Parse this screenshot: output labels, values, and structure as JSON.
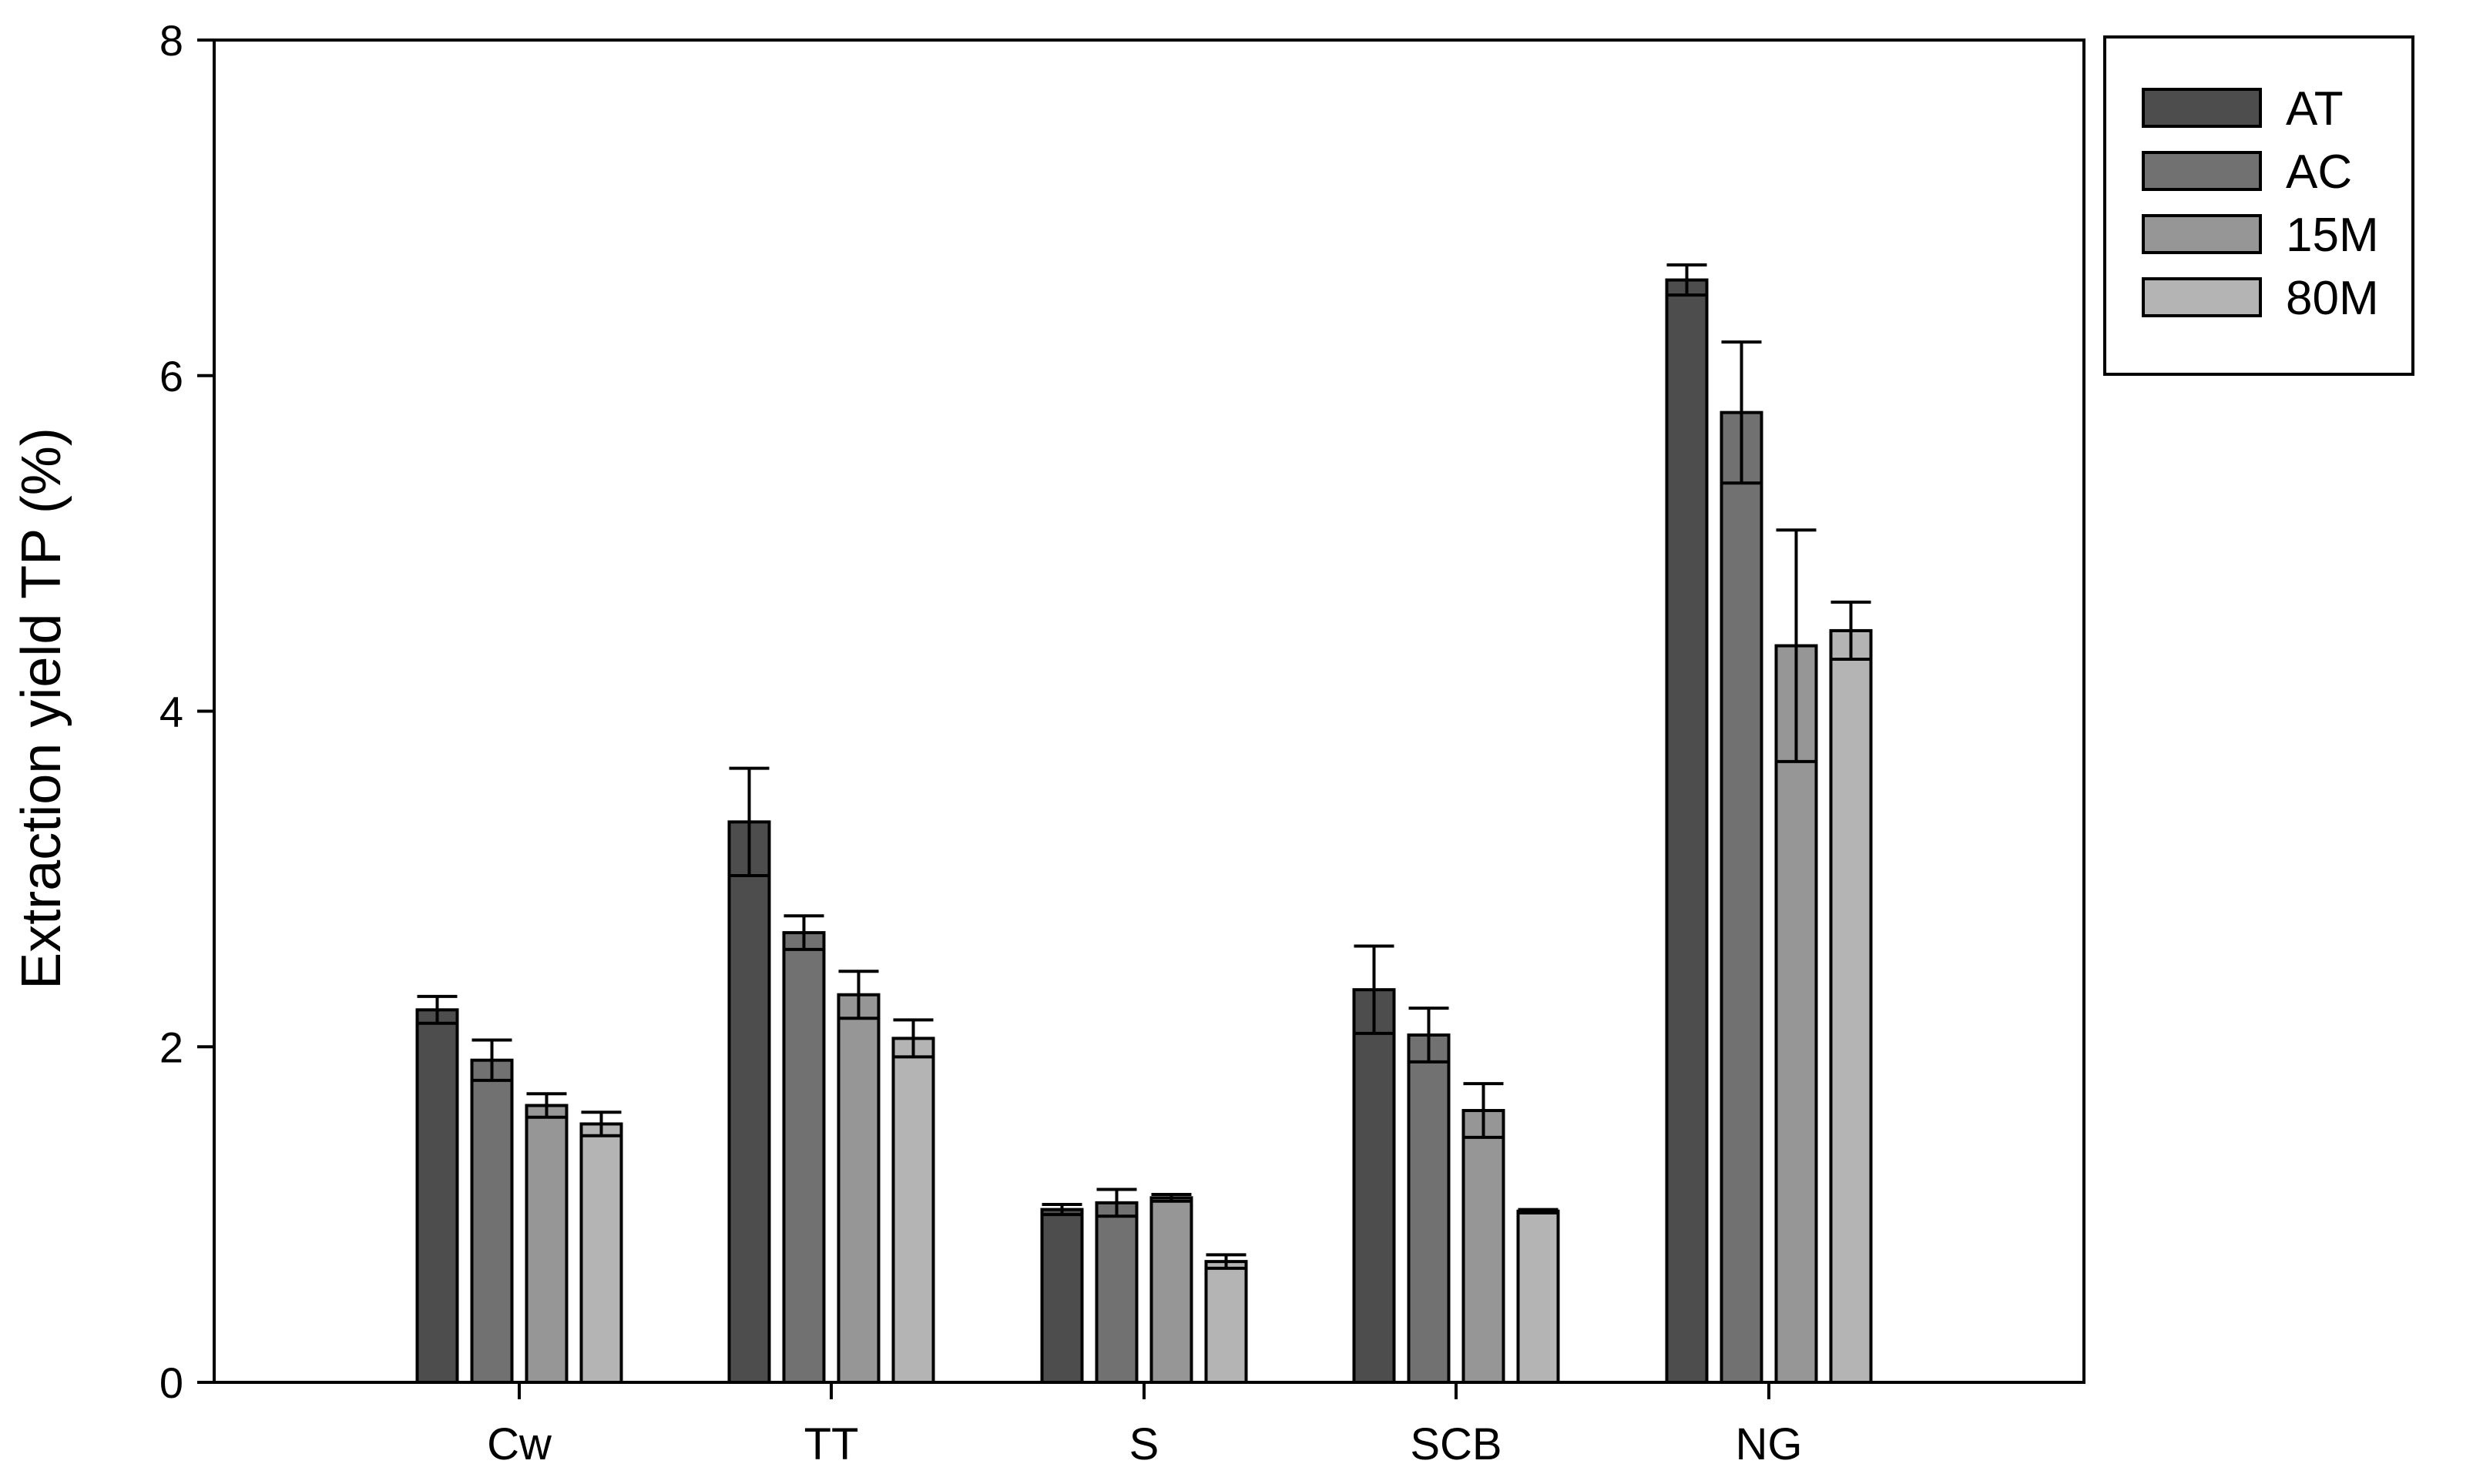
{
  "chart_data": {
    "type": "bar",
    "categories": [
      "Cw",
      "TT",
      "S",
      "SCB",
      "NG"
    ],
    "series": [
      {
        "name": "AT",
        "color": "#4d4d4d",
        "values": [
          2.22,
          3.34,
          1.03,
          2.34,
          6.57
        ],
        "errors": [
          0.08,
          0.32,
          0.03,
          0.26,
          0.09
        ]
      },
      {
        "name": "AC",
        "color": "#717171",
        "values": [
          1.92,
          2.68,
          1.07,
          2.07,
          5.78
        ],
        "errors": [
          0.12,
          0.1,
          0.08,
          0.16,
          0.42
        ]
      },
      {
        "name": "15M",
        "color": "#969696",
        "values": [
          1.65,
          2.31,
          1.1,
          1.62,
          4.39
        ],
        "errors": [
          0.07,
          0.14,
          0.02,
          0.16,
          0.69
        ]
      },
      {
        "name": "80M",
        "color": "#b4b4b4",
        "values": [
          1.54,
          2.05,
          0.72,
          1.02,
          4.48
        ],
        "errors": [
          0.07,
          0.11,
          0.04,
          0.01,
          0.17
        ]
      }
    ],
    "xlabel": "",
    "ylabel": "Extraction yield TP (%)",
    "ylim": [
      0,
      8
    ],
    "yticks": [
      0,
      2,
      4,
      6,
      8
    ],
    "grid": false,
    "legend_position": "outside-top-right"
  }
}
